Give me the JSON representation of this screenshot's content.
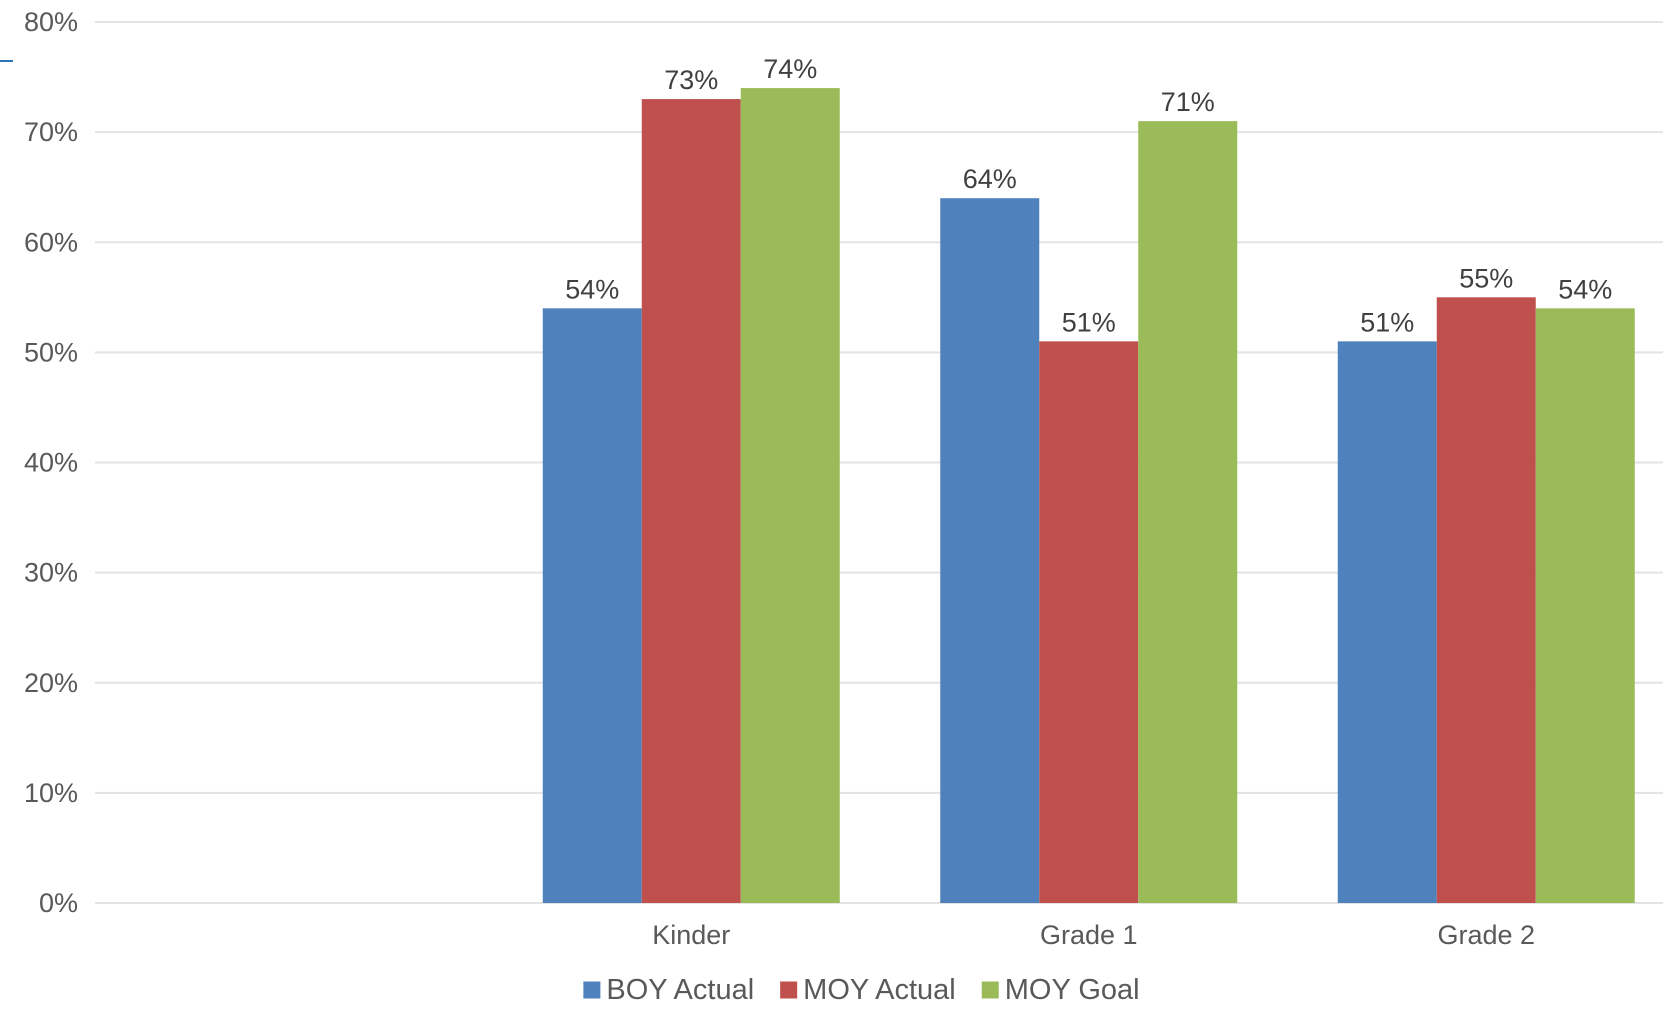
{
  "chart_data": {
    "type": "bar",
    "title": "",
    "xlabel": "",
    "ylabel": "",
    "categories": [
      "",
      "Kinder",
      "Grade 1",
      "Grade 2"
    ],
    "series": [
      {
        "name": "BOY Actual",
        "color": "#4f81bd",
        "values": [
          null,
          54,
          64,
          51
        ],
        "labels": [
          "",
          "54%",
          "64%",
          "51%"
        ]
      },
      {
        "name": "MOY Actual",
        "color": "#c0504d",
        "values": [
          null,
          73,
          51,
          55
        ],
        "labels": [
          "",
          "73%",
          "51%",
          "55%"
        ]
      },
      {
        "name": "MOY Goal",
        "color": "#9bbb59",
        "values": [
          null,
          74,
          71,
          54
        ],
        "labels": [
          "",
          "74%",
          "71%",
          "54%"
        ]
      }
    ],
    "ylim": [
      0,
      80
    ],
    "yticks": [
      {
        "value": 0,
        "label": "0%"
      },
      {
        "value": 10,
        "label": "10%"
      },
      {
        "value": 20,
        "label": "20%"
      },
      {
        "value": 30,
        "label": "30%"
      },
      {
        "value": 40,
        "label": "40%"
      },
      {
        "value": 50,
        "label": "50%"
      },
      {
        "value": 60,
        "label": "60%"
      },
      {
        "value": 70,
        "label": "70%"
      },
      {
        "value": 80,
        "label": "80%"
      }
    ],
    "grid": true,
    "legend": "bottom-center"
  },
  "accent_line_color": "#2e75b6"
}
